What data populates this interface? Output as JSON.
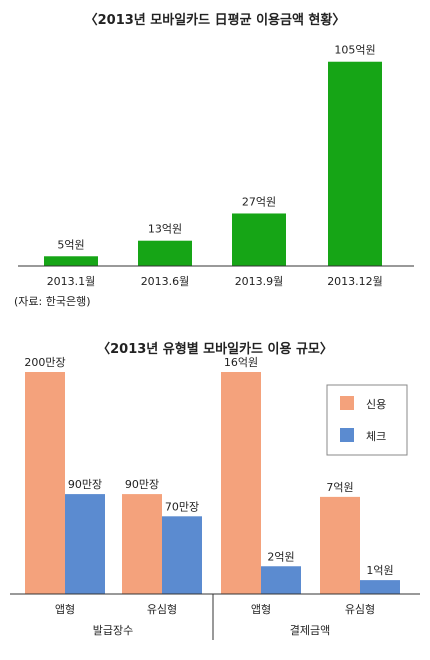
{
  "chart_data": [
    {
      "type": "bar",
      "title": "〈2013년 모바일카드 日평균 이용금액 현황〉",
      "categories": [
        "2013.1월",
        "2013.6월",
        "2013.9월",
        "2013.12월"
      ],
      "values": [
        5,
        13,
        27,
        105
      ],
      "value_labels": [
        "5억원",
        "13억원",
        "27억원",
        "105억원"
      ],
      "xlabel": "",
      "ylabel": "",
      "ylim": [
        0,
        110
      ],
      "grid": false,
      "source": "(자료: 한국은행)",
      "colors": {
        "bar": "#16a516"
      }
    },
    {
      "type": "bar",
      "title": "〈2013년 유형별 모바일카드 이용 규모〉",
      "groups": [
        {
          "name": "발급장수",
          "categories": [
            "앱형",
            "유심형"
          ],
          "values": {
            "신용": [
              200,
              90
            ],
            "체크": [
              90,
              70
            ]
          },
          "value_labels": {
            "신용": [
              "200만장",
              "90만장"
            ],
            "체크": [
              "90만장",
              "70만장"
            ]
          },
          "ylim": [
            0,
            200
          ]
        },
        {
          "name": "결제금액",
          "categories": [
            "앱형",
            "유심형"
          ],
          "values": {
            "신용": [
              16,
              7
            ],
            "체크": [
              2,
              1
            ]
          },
          "value_labels": {
            "신용": [
              "16억원",
              "7억원"
            ],
            "체크": [
              "2억원",
              "1억원"
            ]
          },
          "ylim": [
            0,
            16
          ]
        }
      ],
      "series": [
        {
          "name": "신용",
          "color": "#f4a27c"
        },
        {
          "name": "체크",
          "color": "#5b8bd0"
        }
      ],
      "legend": "top-right",
      "grid": false
    }
  ]
}
